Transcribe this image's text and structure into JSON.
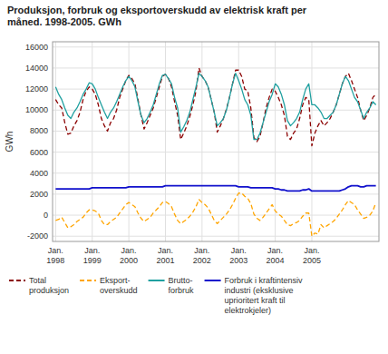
{
  "chart_data": {
    "type": "line",
    "title": "Produksjon, forbruk og eksportoverskudd av elektrisk kraft per\nmåned. 1998-2005. GWh",
    "y_label": "GWh",
    "ylim": [
      -2500,
      16500
    ],
    "yticks": [
      -2000,
      0,
      2000,
      4000,
      6000,
      8000,
      10000,
      12000,
      14000,
      16000
    ],
    "grid": true,
    "legend": "bottom",
    "categories": [
      "Jan.\n1998",
      null,
      null,
      null,
      null,
      null,
      null,
      null,
      null,
      null,
      null,
      null,
      "Jan.\n1999",
      null,
      null,
      null,
      null,
      null,
      null,
      null,
      null,
      null,
      null,
      null,
      "Jan.\n2000",
      null,
      null,
      null,
      null,
      null,
      null,
      null,
      null,
      null,
      null,
      null,
      "Jan.\n2001",
      null,
      null,
      null,
      null,
      null,
      null,
      null,
      null,
      null,
      null,
      null,
      "Jan.\n2002",
      null,
      null,
      null,
      null,
      null,
      null,
      null,
      null,
      null,
      null,
      null,
      "Jan.\n2003",
      null,
      null,
      null,
      null,
      null,
      null,
      null,
      null,
      null,
      null,
      null,
      "Jan.\n2004",
      null,
      null,
      null,
      null,
      null,
      null,
      null,
      null,
      null,
      null,
      null,
      "Jan.\n2005",
      null,
      null,
      null,
      null,
      null,
      null,
      null,
      null,
      null,
      null,
      null,
      null,
      null,
      null,
      null,
      null,
      null,
      null,
      null,
      null,
      null
    ],
    "series": [
      {
        "name": "Total\nproduksjon",
        "color": "#8B0000",
        "line_style": "dashed",
        "values": [
          11000,
          10500,
          10200,
          8800,
          7700,
          7800,
          8500,
          9000,
          9800,
          11000,
          11800,
          12200,
          12000,
          11500,
          10500,
          9200,
          8500,
          8000,
          8800,
          9200,
          10000,
          11200,
          12000,
          12800,
          13300,
          13000,
          12500,
          11000,
          9500,
          8200,
          8800,
          9500,
          10200,
          11200,
          12200,
          13200,
          13400,
          13000,
          12200,
          10800,
          9500,
          7200,
          7800,
          8500,
          9400,
          10500,
          11800,
          14000,
          13200,
          12800,
          12200,
          11000,
          9800,
          7900,
          8500,
          9200,
          10100,
          11200,
          12500,
          13800,
          13800,
          13200,
          12000,
          11800,
          10200,
          7400,
          7000,
          7500,
          8800,
          10200,
          11200,
          12000,
          11800,
          11200,
          10500,
          9500,
          7500,
          7200,
          7800,
          8200,
          9200,
          10500,
          11200,
          11000,
          6600,
          7800,
          8500,
          9000,
          8500,
          8800,
          9200,
          9800,
          10500,
          11500,
          12500,
          13200,
          13500,
          12800,
          12000,
          11200,
          10000,
          9000,
          9500,
          10200,
          11200,
          11500
        ]
      },
      {
        "name": "Eksport-\noverskudd",
        "color": "#FFA500",
        "line_style": "dashed",
        "values": [
          -500,
          -400,
          -200,
          -700,
          -1200,
          -1100,
          -900,
          -600,
          -400,
          -200,
          200,
          500,
          500,
          400,
          200,
          -500,
          -900,
          -900,
          -600,
          -400,
          -200,
          200,
          600,
          1000,
          1200,
          1000,
          800,
          200,
          -300,
          -600,
          -400,
          -200,
          200,
          500,
          800,
          1200,
          1300,
          1100,
          800,
          100,
          -500,
          -800,
          -600,
          -400,
          -100,
          300,
          800,
          1500,
          1200,
          1000,
          700,
          100,
          -500,
          -800,
          -500,
          -200,
          100,
          500,
          1000,
          1600,
          2100,
          2100,
          1800,
          1600,
          1100,
          100,
          -300,
          -500,
          -200,
          200,
          600,
          1000,
          400,
          100,
          -100,
          -500,
          -900,
          -1000,
          -800,
          -700,
          -500,
          -100,
          200,
          200,
          -2000,
          -1700,
          -1800,
          -900,
          -1200,
          -1000,
          -800,
          -600,
          -300,
          100,
          500,
          1000,
          1400,
          1200,
          1000,
          500,
          100,
          -300,
          -200,
          0,
          400,
          1200
        ]
      },
      {
        "name": "Brutto-\nforbruk",
        "color": "#20A0A0",
        "line_style": "solid",
        "values": [
          12200,
          11500,
          11000,
          10200,
          9500,
          9200,
          9800,
          10200,
          10800,
          11500,
          12000,
          12600,
          12500,
          12000,
          11200,
          10500,
          9800,
          9200,
          9800,
          10200,
          10800,
          11500,
          12200,
          12800,
          13200,
          12800,
          12200,
          10800,
          9500,
          8800,
          9200,
          9800,
          10500,
          11500,
          12500,
          13300,
          13400,
          13000,
          12500,
          11200,
          10200,
          7900,
          8400,
          9000,
          9800,
          11000,
          12200,
          13500,
          13200,
          12800,
          12200,
          11000,
          9800,
          8500,
          8800,
          9200,
          10000,
          11200,
          12500,
          13500,
          12800,
          12000,
          11000,
          10500,
          9500,
          7200,
          7200,
          7800,
          8800,
          9800,
          10800,
          11500,
          12500,
          12200,
          11500,
          10500,
          9000,
          8500,
          8800,
          9200,
          9800,
          11000,
          12000,
          12500,
          10500,
          10500,
          10200,
          9800,
          9200,
          9200,
          9500,
          9800,
          10500,
          11500,
          12500,
          13200,
          12800,
          12000,
          11200,
          10800,
          10000,
          9200,
          9800,
          10200,
          10800,
          10500
        ]
      },
      {
        "name": "Forbruk i kraftintensiv\nindustri (eksklusive\nuprioritert kraft til\nelektrokjeler)",
        "color": "#1010CC",
        "line_style": "solid",
        "values": [
          2500,
          2500,
          2500,
          2500,
          2500,
          2500,
          2500,
          2500,
          2500,
          2500,
          2500,
          2500,
          2600,
          2600,
          2600,
          2600,
          2600,
          2600,
          2600,
          2600,
          2600,
          2600,
          2600,
          2600,
          2700,
          2700,
          2700,
          2700,
          2700,
          2700,
          2700,
          2700,
          2700,
          2700,
          2700,
          2700,
          2800,
          2800,
          2800,
          2800,
          2800,
          2800,
          2800,
          2800,
          2800,
          2800,
          2800,
          2800,
          2800,
          2800,
          2800,
          2800,
          2800,
          2800,
          2800,
          2800,
          2800,
          2800,
          2800,
          2800,
          2700,
          2700,
          2700,
          2700,
          2600,
          2600,
          2600,
          2600,
          2600,
          2600,
          2600,
          2600,
          2500,
          2500,
          2400,
          2400,
          2300,
          2300,
          2300,
          2300,
          2300,
          2400,
          2400,
          2500,
          2300,
          2300,
          2300,
          2300,
          2300,
          2300,
          2300,
          2300,
          2300,
          2300,
          2400,
          2500,
          2700,
          2800,
          2800,
          2800,
          2700,
          2700,
          2800,
          2800,
          2800,
          2800
        ]
      }
    ]
  }
}
